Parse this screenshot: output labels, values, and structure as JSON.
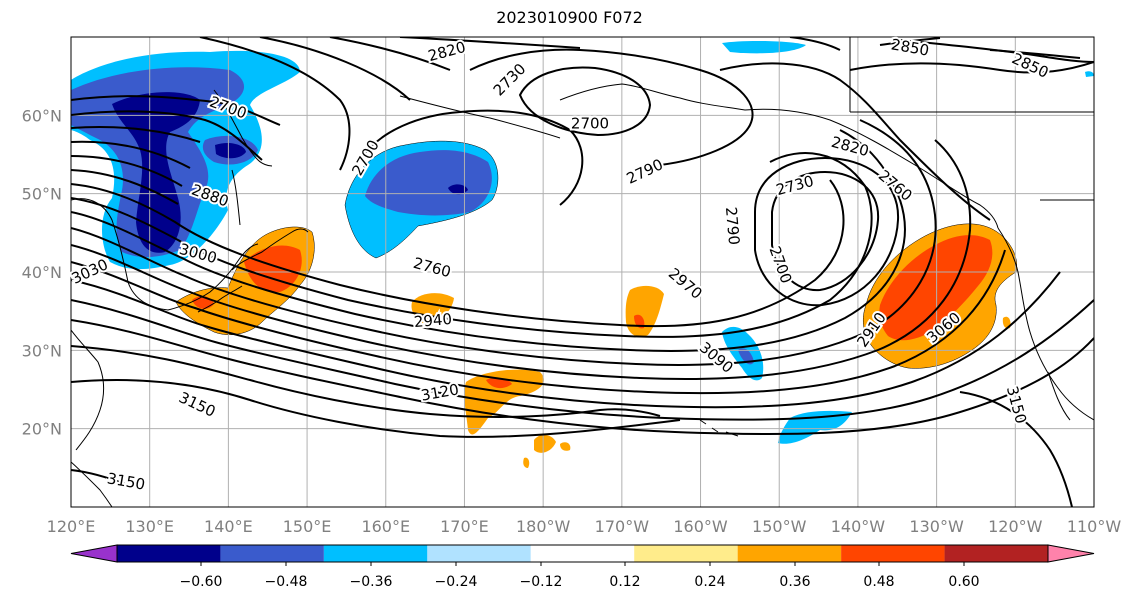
{
  "title": "2023010900 F072",
  "map": {
    "x_tick_labels": [
      "120°E",
      "130°E",
      "140°E",
      "150°E",
      "160°E",
      "170°E",
      "180°W",
      "170°W",
      "160°W",
      "150°W",
      "140°W",
      "130°W",
      "120°W",
      "110°W"
    ],
    "y_tick_labels": [
      "20°N",
      "30°N",
      "40°N",
      "50°N",
      "60°N"
    ],
    "contour_labels": [
      "2820",
      "2730",
      "2700",
      "2700",
      "2700",
      "2880",
      "3000",
      "3030",
      "2820",
      "2790",
      "2730",
      "2760",
      "2790",
      "2700",
      "2760",
      "2970",
      "2940",
      "3090",
      "2910",
      "3060",
      "3120",
      "3150",
      "3150",
      "3150",
      "2850",
      "2850"
    ],
    "colors": {
      "contour": "#000000",
      "grid": "#b0b0b0",
      "coast": "#000000"
    }
  },
  "colorbar": {
    "labels": [
      "−0.60",
      "−0.48",
      "−0.36",
      "−0.24",
      "−0.12",
      "0.12",
      "0.24",
      "0.36",
      "0.48",
      "0.60"
    ],
    "colors": [
      "#9932cc",
      "#00008b",
      "#3a5bcc",
      "#00bfff",
      "#b0e2ff",
      "#ffffff",
      "#ffec8b",
      "#ffa500",
      "#ff4500",
      "#b22222",
      "#ff82ab"
    ]
  }
}
